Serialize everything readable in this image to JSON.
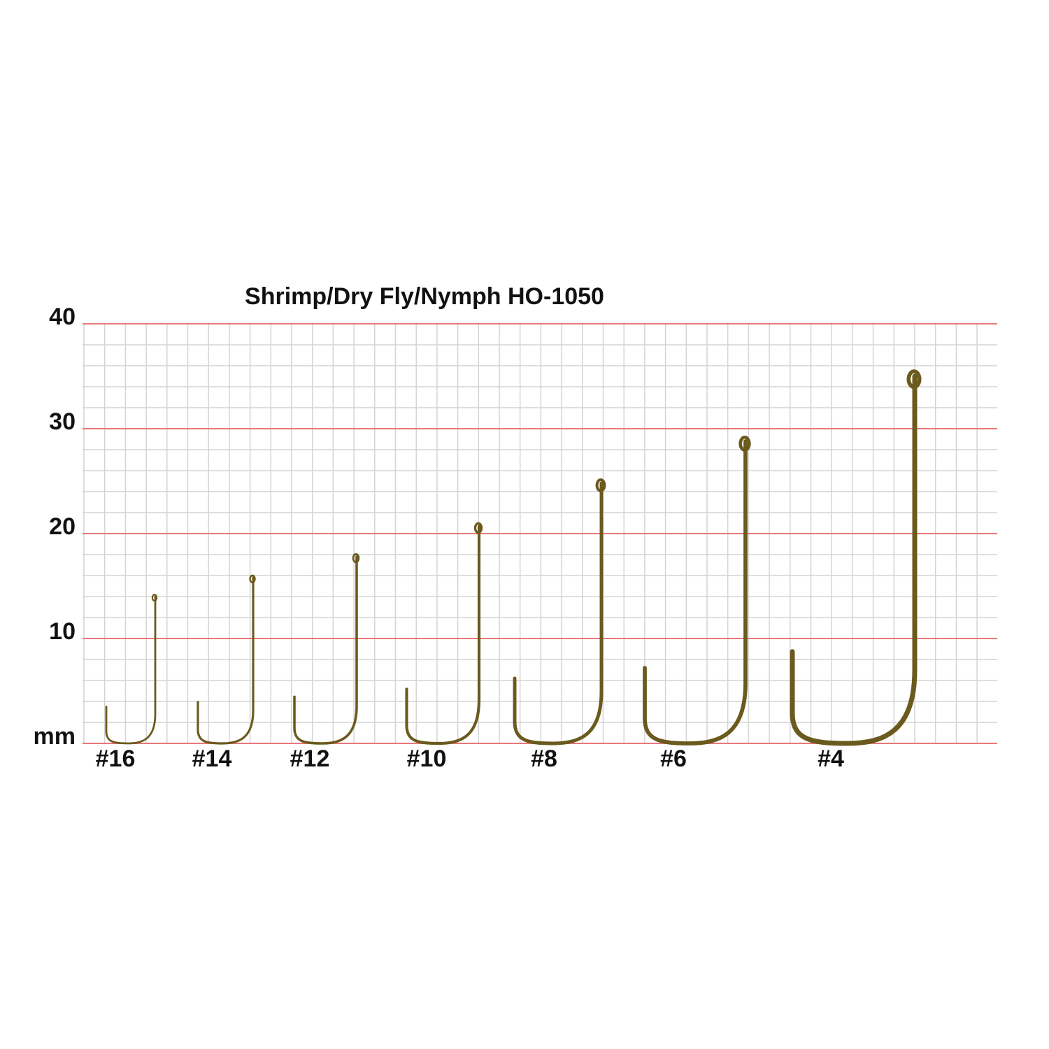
{
  "chart_data": {
    "type": "hook",
    "title": "Shrimp/Dry Fly/Nymph HO-1050",
    "categories": [
      "#16",
      "#14",
      "#12",
      "#10",
      "#8",
      "#6",
      "#4"
    ],
    "values": [
      14,
      15.8,
      17.8,
      20.7,
      24.8,
      28.8,
      35
    ],
    "color": "#6b5a1e",
    "ylim": [
      0,
      40
    ],
    "yticks": [
      {
        "value": 0,
        "label": "mm"
      },
      10,
      20,
      30,
      40
    ],
    "grid": true
  }
}
